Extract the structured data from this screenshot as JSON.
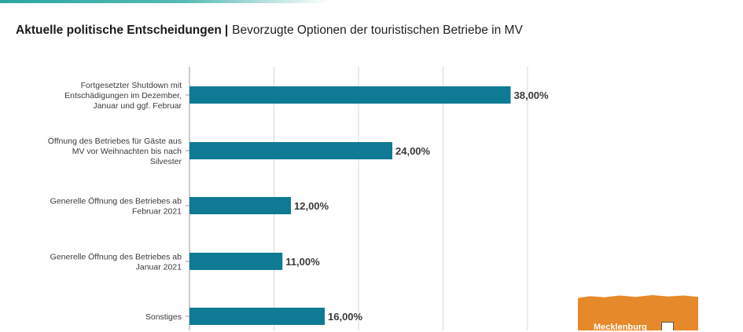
{
  "title": {
    "main": "Aktuelle politische Entscheidungen",
    "separator": "|",
    "sub": "Bevorzugte Optionen der touristischen Betriebe in MV"
  },
  "colors": {
    "bar": "#0f7a93",
    "grid": "#d9d9d9",
    "axis": "#9a9a9a",
    "logo": "#e6892a"
  },
  "logo": {
    "text": "Mecklenburg"
  },
  "chart_data": {
    "type": "bar",
    "orientation": "horizontal",
    "title": "Aktuelle politische Entscheidungen | Bevorzugte Optionen der touristischen Betriebe in MV",
    "categories": [
      [
        "Fortgesetzter Shutdown mit",
        "Entschädigungen im Dezember,",
        "Januar und ggf. Februar"
      ],
      [
        "Öffnung des Betriebes für Gäste aus",
        "MV vor Weihnachten bis nach",
        "Silvester"
      ],
      [
        "Generelle Öffnung des Betriebes ab",
        "Februar 2021"
      ],
      [
        "Generelle Öffnung des Betriebes ab",
        "Januar 2021"
      ],
      [
        "Sonstiges"
      ]
    ],
    "values": [
      38,
      24,
      12,
      11,
      16
    ],
    "value_labels": [
      "38,00%",
      "24,00%",
      "12,00%",
      "11,00%",
      "16,00%"
    ],
    "xlim": [
      0,
      40
    ],
    "grid": true
  }
}
